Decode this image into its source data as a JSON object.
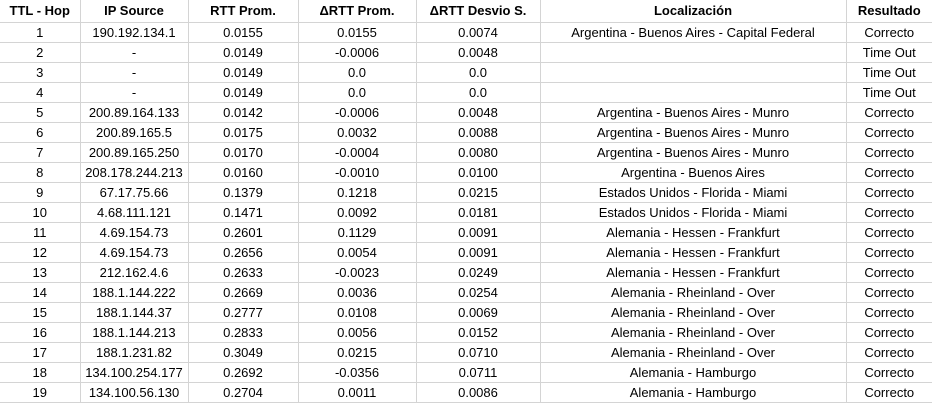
{
  "headers": [
    "TTL - Hop",
    "IP Source",
    "RTT Prom.",
    "ΔRTT Prom.",
    "ΔRTT Desvio S.",
    "Localización",
    "Resultado"
  ],
  "rows": [
    [
      "1",
      "190.192.134.1",
      "0.0155",
      "0.0155",
      "0.0074",
      "Argentina - Buenos Aires - Capital Federal",
      "Correcto"
    ],
    [
      "2",
      "-",
      "0.0149",
      "-0.0006",
      "0.0048",
      "",
      "Time  Out"
    ],
    [
      "3",
      "-",
      "0.0149",
      "0.0",
      "0.0",
      "",
      "Time  Out"
    ],
    [
      "4",
      "-",
      "0.0149",
      "0.0",
      "0.0",
      "",
      "Time  Out"
    ],
    [
      "5",
      "200.89.164.133",
      "0.0142",
      "-0.0006",
      "0.0048",
      "Argentina - Buenos Aires - Munro",
      "Correcto"
    ],
    [
      "6",
      "200.89.165.5",
      "0.0175",
      "0.0032",
      "0.0088",
      "Argentina - Buenos Aires - Munro",
      "Correcto"
    ],
    [
      "7",
      "200.89.165.250",
      "0.0170",
      "-0.0004",
      "0.0080",
      "Argentina - Buenos Aires - Munro",
      "Correcto"
    ],
    [
      "8",
      "208.178.244.213",
      "0.0160",
      "-0.0010",
      "0.0100",
      "Argentina - Buenos Aires",
      "Correcto"
    ],
    [
      "9",
      "67.17.75.66",
      "0.1379",
      "0.1218",
      "0.0215",
      "Estados Unidos - Florida - Miami",
      "Correcto"
    ],
    [
      "10",
      "4.68.111.121",
      "0.1471",
      "0.0092",
      "0.0181",
      "Estados Unidos - Florida - Miami",
      "Correcto"
    ],
    [
      "11",
      "4.69.154.73",
      "0.2601",
      "0.1129",
      "0.0091",
      "Alemania - Hessen - Frankfurt",
      "Correcto"
    ],
    [
      "12",
      "4.69.154.73",
      "0.2656",
      "0.0054",
      "0.0091",
      "Alemania - Hessen - Frankfurt",
      "Correcto"
    ],
    [
      "13",
      "212.162.4.6",
      "0.2633",
      "-0.0023",
      "0.0249",
      "Alemania - Hessen - Frankfurt",
      "Correcto"
    ],
    [
      "14",
      "188.1.144.222",
      "0.2669",
      "0.0036",
      "0.0254",
      "Alemania - Rheinland - Over",
      "Correcto"
    ],
    [
      "15",
      "188.1.144.37",
      "0.2777",
      "0.0108",
      "0.0069",
      "Alemania - Rheinland - Over",
      "Correcto"
    ],
    [
      "16",
      "188.1.144.213",
      "0.2833",
      "0.0056",
      "0.0152",
      "Alemania - Rheinland - Over",
      "Correcto"
    ],
    [
      "17",
      "188.1.231.82",
      "0.3049",
      "0.0215",
      "0.0710",
      "Alemania - Rheinland - Over",
      "Correcto"
    ],
    [
      "18",
      "134.100.254.177",
      "0.2692",
      "-0.0356",
      "0.0711",
      "Alemania - Hamburgo",
      "Correcto"
    ],
    [
      "19",
      "134.100.56.130",
      "0.2704",
      "0.0011",
      "0.0086",
      "Alemania - Hamburgo",
      "Correcto"
    ]
  ]
}
